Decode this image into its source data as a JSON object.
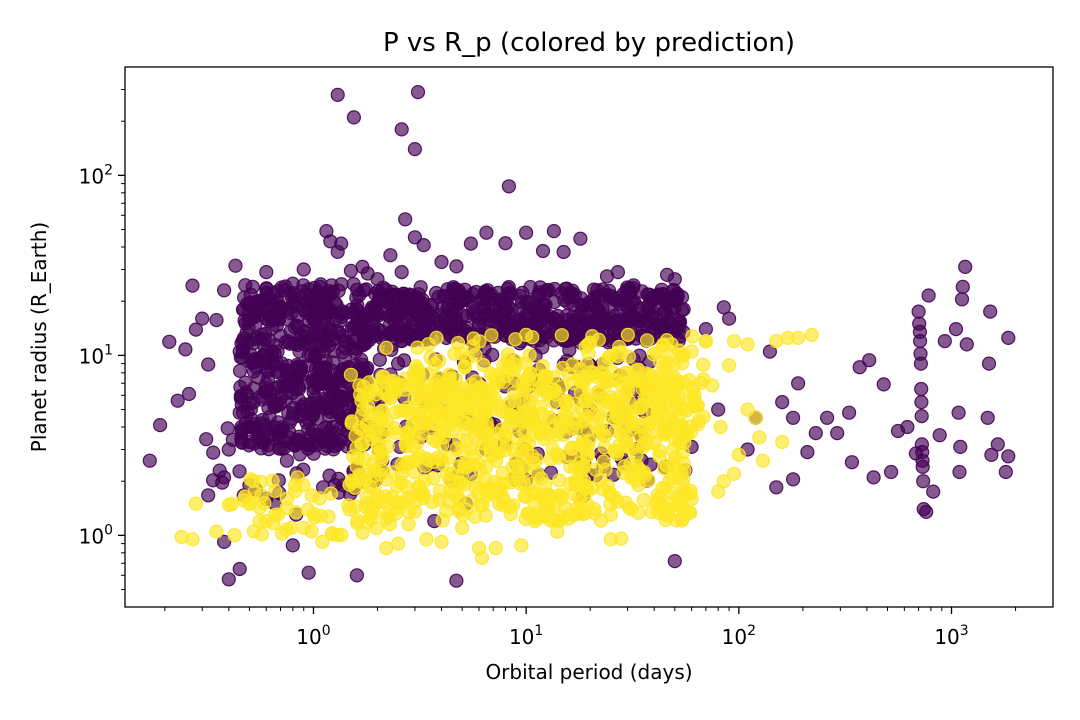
{
  "chart_data": {
    "type": "scatter",
    "title": "P vs R_p (colored by prediction)",
    "xlabel": "Orbital period (days)",
    "ylabel": "Planet radius (R_Earth)",
    "x_scale": "log",
    "y_scale": "log",
    "xlim": [
      0.13,
      3000
    ],
    "ylim": [
      0.4,
      400
    ],
    "x_ticks": [
      {
        "base": "10",
        "exp": "0",
        "value": 1
      },
      {
        "base": "10",
        "exp": "1",
        "value": 10
      },
      {
        "base": "10",
        "exp": "2",
        "value": 100
      },
      {
        "base": "10",
        "exp": "3",
        "value": 1000
      }
    ],
    "y_ticks": [
      {
        "base": "10",
        "exp": "0",
        "value": 1
      },
      {
        "base": "10",
        "exp": "1",
        "value": 10
      },
      {
        "base": "10",
        "exp": "2",
        "value": 100
      }
    ],
    "grid": false,
    "legend": "none",
    "marker_alpha": 0.65,
    "series": [
      {
        "color": "#440154",
        "points": [
          [
            0.17,
            2.6
          ],
          [
            0.19,
            4.1
          ],
          [
            0.21,
            11.9
          ],
          [
            0.23,
            5.6
          ],
          [
            0.25,
            10.8
          ],
          [
            0.27,
            24.4
          ],
          [
            0.26,
            6.1
          ],
          [
            0.28,
            13.9
          ],
          [
            0.3,
            16.0
          ],
          [
            0.32,
            8.9
          ],
          [
            0.35,
            15.7
          ],
          [
            0.38,
            23.0
          ],
          [
            0.43,
            31.5
          ],
          [
            0.45,
            10.5
          ],
          [
            0.5,
            19.1
          ],
          [
            0.55,
            20.1
          ],
          [
            0.6,
            29.0
          ],
          [
            0.65,
            22.0
          ],
          [
            0.75,
            18.0
          ],
          [
            0.8,
            25.0
          ],
          [
            0.9,
            30.0
          ],
          [
            1.05,
            22.5
          ],
          [
            1.15,
            49.0
          ],
          [
            1.2,
            43.0
          ],
          [
            1.3,
            37.6
          ],
          [
            1.35,
            41.8
          ],
          [
            1.5,
            29.5
          ],
          [
            1.7,
            31.0
          ],
          [
            1.8,
            28.5
          ],
          [
            2.0,
            26.5
          ],
          [
            2.3,
            36.0
          ],
          [
            2.6,
            29.0
          ],
          [
            2.7,
            57.0
          ],
          [
            3.0,
            45.3
          ],
          [
            3.3,
            41.0
          ],
          [
            4.0,
            33.0
          ],
          [
            4.7,
            31.2
          ],
          [
            5.5,
            41.8
          ],
          [
            6.5,
            48.0
          ],
          [
            8.0,
            42.0
          ],
          [
            10.0,
            48.0
          ],
          [
            12.0,
            38.0
          ],
          [
            13.5,
            49.0
          ],
          [
            15.0,
            37.5
          ],
          [
            18.0,
            44.5
          ],
          [
            24.0,
            27.5
          ],
          [
            27.0,
            29.0
          ],
          [
            32.0,
            24.5
          ],
          [
            40.0,
            20.5
          ],
          [
            46.0,
            28.0
          ],
          [
            50.0,
            26.5
          ],
          [
            55.0,
            18.0
          ],
          [
            70.0,
            14.0
          ],
          [
            85.0,
            18.5
          ],
          [
            90.0,
            16.0
          ],
          [
            1.3,
            280.0
          ],
          [
            1.55,
            210.0
          ],
          [
            2.6,
            180.0
          ],
          [
            3.1,
            290.0
          ],
          [
            3.0,
            140.0
          ],
          [
            8.3,
            87.0
          ],
          [
            0.32,
            1.67
          ],
          [
            0.38,
            2.1
          ],
          [
            0.4,
            3.0
          ],
          [
            0.45,
            4.8
          ],
          [
            0.5,
            1.9
          ],
          [
            0.55,
            3.5
          ],
          [
            0.6,
            1.6
          ],
          [
            0.75,
            2.6
          ],
          [
            0.85,
            3.4
          ],
          [
            0.4,
            0.57
          ],
          [
            0.45,
            0.65
          ],
          [
            0.38,
            0.92
          ],
          [
            0.8,
            0.88
          ],
          [
            0.95,
            0.62
          ],
          [
            1.6,
            0.6
          ],
          [
            4.7,
            0.56
          ],
          [
            3.7,
            1.2
          ],
          [
            4.5,
            2.0
          ],
          [
            5.2,
            1.5
          ],
          [
            6.5,
            3.0
          ],
          [
            7.0,
            4.0
          ],
          [
            9.0,
            2.5
          ],
          [
            10.5,
            4.6
          ],
          [
            11.0,
            7.5
          ],
          [
            14.0,
            5.5
          ],
          [
            17.0,
            6.2
          ],
          [
            18.5,
            1.65
          ],
          [
            20.0,
            5.0
          ],
          [
            22.0,
            6.0
          ],
          [
            28.0,
            4.5
          ],
          [
            32.0,
            9.5
          ],
          [
            35.0,
            3.5
          ],
          [
            45.0,
            2.4
          ],
          [
            50.0,
            0.72
          ],
          [
            56.0,
            2.3
          ],
          [
            60.0,
            3.1
          ],
          [
            80.0,
            5.0
          ],
          [
            110.0,
            3.0
          ],
          [
            120.0,
            4.5
          ],
          [
            140.0,
            10.5
          ],
          [
            150.0,
            1.85
          ],
          [
            160.0,
            5.5
          ],
          [
            180.0,
            2.05
          ],
          [
            180.0,
            4.5
          ],
          [
            190.0,
            7.0
          ],
          [
            210.0,
            2.9
          ],
          [
            230.0,
            3.7
          ],
          [
            260.0,
            4.5
          ],
          [
            290.0,
            3.7
          ],
          [
            330.0,
            4.8
          ],
          [
            340.0,
            2.55
          ],
          [
            370.0,
            8.6
          ],
          [
            410.0,
            9.4
          ],
          [
            430.0,
            2.1
          ],
          [
            480.0,
            6.9
          ],
          [
            520.0,
            2.25
          ],
          [
            560.0,
            3.8
          ],
          [
            620.0,
            4.0
          ],
          [
            680.0,
            2.85
          ],
          [
            700.0,
            17.5
          ],
          [
            705.0,
            15.0
          ],
          [
            710.0,
            13.5
          ],
          [
            712.0,
            12.0
          ],
          [
            715.0,
            10.2
          ],
          [
            718.0,
            9.0
          ],
          [
            720.0,
            6.5
          ],
          [
            722.0,
            5.5
          ],
          [
            724.0,
            4.6
          ],
          [
            726.0,
            3.2
          ],
          [
            728.0,
            2.9
          ],
          [
            730.0,
            2.6
          ],
          [
            732.0,
            2.4
          ],
          [
            736.0,
            2.0
          ],
          [
            740.0,
            1.4
          ],
          [
            760.0,
            1.35
          ],
          [
            780.0,
            21.5
          ],
          [
            820.0,
            1.75
          ],
          [
            880.0,
            3.6
          ],
          [
            930.0,
            12.0
          ],
          [
            1050.0,
            14.0
          ],
          [
            1080.0,
            4.8
          ],
          [
            1090.0,
            2.25
          ],
          [
            1100.0,
            3.1
          ],
          [
            1120.0,
            20.5
          ],
          [
            1130.0,
            24.0
          ],
          [
            1160.0,
            31.0
          ],
          [
            1180.0,
            11.5
          ],
          [
            1480.0,
            4.5
          ],
          [
            1500.0,
            9.0
          ],
          [
            1520.0,
            17.5
          ],
          [
            1540.0,
            2.8
          ],
          [
            1650.0,
            3.2
          ],
          [
            1800.0,
            2.25
          ],
          [
            1850.0,
            12.5
          ],
          [
            1850.0,
            2.75
          ],
          [
            2.0,
            14.0
          ],
          [
            2.5,
            9.0
          ],
          [
            3.5,
            16.0
          ],
          [
            6.0,
            14.5
          ]
        ],
        "clusters": [
          {
            "x_range": [
              0.45,
              1.8
            ],
            "y_range": [
              3.0,
              25.0
            ],
            "n": 520
          },
          {
            "x_range": [
              1.8,
              55.0
            ],
            "y_range": [
              12.0,
              24.0
            ],
            "n": 520
          },
          {
            "x_range": [
              1.6,
              40.0
            ],
            "y_range": [
              2.0,
              14.0
            ],
            "n": 150
          },
          {
            "x_range": [
              0.3,
              1.6
            ],
            "y_range": [
              1.3,
              4.0
            ],
            "n": 40
          }
        ]
      },
      {
        "color": "#fde725",
        "points": [
          [
            0.24,
            0.98
          ],
          [
            0.27,
            0.95
          ],
          [
            0.28,
            1.5
          ],
          [
            0.35,
            1.05
          ],
          [
            0.5,
            1.5
          ],
          [
            0.6,
            1.2
          ],
          [
            0.75,
            1.6
          ],
          [
            0.9,
            1.1
          ],
          [
            1.1,
            0.92
          ],
          [
            1.3,
            1.0
          ],
          [
            2.2,
            0.85
          ],
          [
            2.5,
            0.9
          ],
          [
            2.8,
            1.15
          ],
          [
            3.4,
            0.95
          ],
          [
            4.0,
            0.92
          ],
          [
            5.0,
            1.1
          ],
          [
            6.0,
            0.85
          ],
          [
            7.2,
            0.85
          ],
          [
            9.5,
            0.88
          ],
          [
            11.0,
            1.2
          ],
          [
            14.0,
            1.05
          ],
          [
            25.0,
            0.95
          ],
          [
            1.5,
            7.8
          ],
          [
            1.7,
            3.2
          ],
          [
            30.0,
            8.0
          ],
          [
            40.0,
            7.0
          ],
          [
            52.0,
            4.5
          ],
          [
            62.0,
            6.0
          ],
          [
            70.0,
            12.0
          ],
          [
            75.0,
            6.8
          ],
          [
            82.0,
            4.0
          ],
          [
            90.0,
            8.8
          ],
          [
            95.0,
            12.0
          ],
          [
            110.0,
            11.5
          ],
          [
            120.0,
            4.5
          ],
          [
            125.0,
            3.5
          ],
          [
            130.0,
            2.6
          ],
          [
            85.0,
            2.0
          ],
          [
            60.0,
            10.5
          ],
          [
            150.0,
            12.0
          ],
          [
            160.0,
            3.3
          ],
          [
            170.0,
            12.5
          ],
          [
            190.0,
            12.5
          ],
          [
            220.0,
            13.0
          ],
          [
            110.0,
            5.0
          ],
          [
            100.0,
            2.8
          ],
          [
            80.0,
            1.75
          ],
          [
            95.0,
            2.2
          ],
          [
            45.0,
            5.6
          ],
          [
            55.0,
            1.4
          ],
          [
            25.0,
            1.3
          ],
          [
            17.0,
            1.3
          ],
          [
            28.0,
            0.96
          ],
          [
            6.2,
            0.75
          ],
          [
            3.0,
            2.6
          ],
          [
            2.2,
            11.0
          ],
          [
            10.0,
            13.0
          ]
        ],
        "clusters": [
          {
            "x_range": [
              1.5,
              60.0
            ],
            "y_range": [
              1.2,
              8.0
            ],
            "n": 680
          },
          {
            "x_range": [
              3.0,
              70.0
            ],
            "y_range": [
              3.5,
              13.0
            ],
            "n": 220
          },
          {
            "x_range": [
              0.4,
              2.5
            ],
            "y_range": [
              1.0,
              2.2
            ],
            "n": 60
          }
        ]
      }
    ]
  }
}
